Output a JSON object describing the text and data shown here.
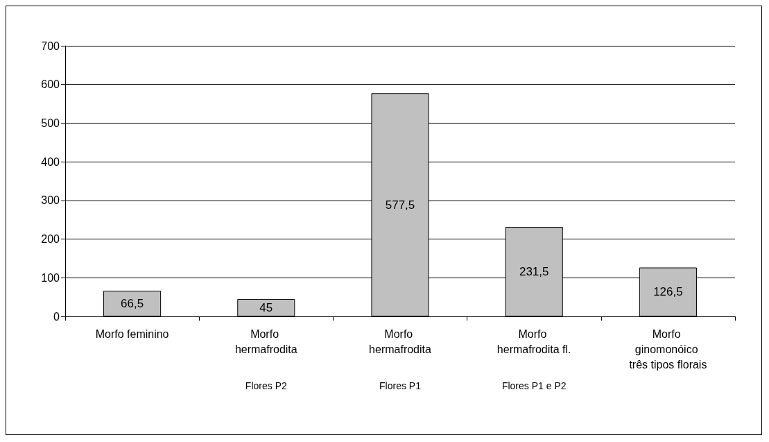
{
  "chart_data": {
    "type": "bar",
    "categories": [
      "Morfo feminino",
      "Morfo hermafrodita",
      "Morfo hermafrodita",
      "Morfo hermafrodita fl.",
      "Morfo ginomonóico três tipos florais"
    ],
    "values": [
      66.5,
      45,
      577.5,
      231.5,
      126.5
    ],
    "value_labels": [
      "66,5",
      "45",
      "577,5",
      "231,5",
      "126,5"
    ],
    "color": "#c0c0c0",
    "ylim": [
      0,
      700
    ],
    "yticks": [
      0,
      100,
      200,
      300,
      400,
      500,
      600,
      700
    ],
    "grid": "y",
    "annotations": [
      "Flores P2",
      "Flores P1",
      "Flores P1 e P2"
    ]
  }
}
